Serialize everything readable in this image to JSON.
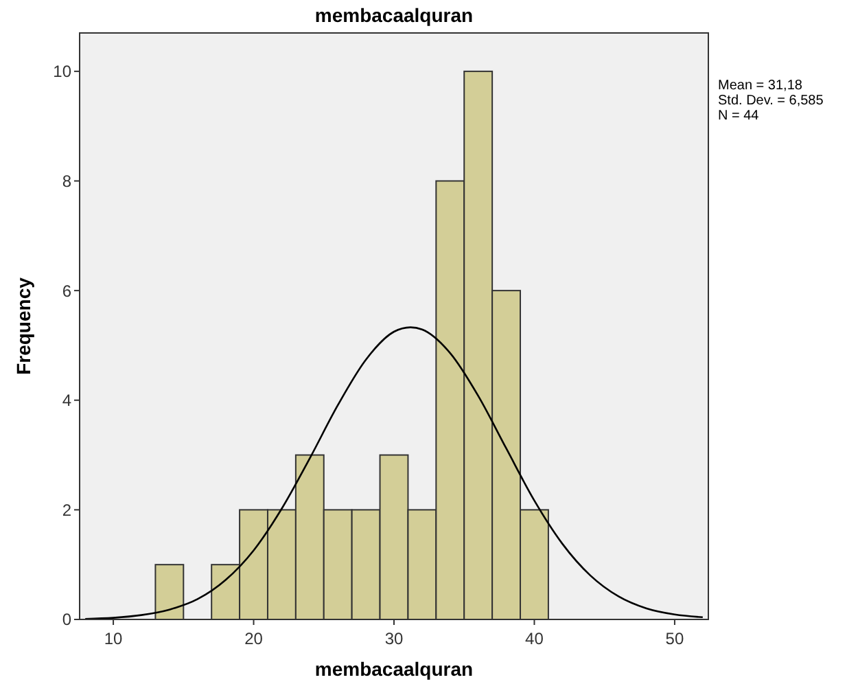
{
  "chart_data": {
    "type": "histogram",
    "title": "membacaalquran",
    "xlabel": "membacaalquran",
    "ylabel": "Frequency",
    "series": [
      {
        "color": "#d3ce97",
        "bins": [
          13,
          15,
          17,
          19,
          21,
          23,
          25,
          27,
          29,
          31,
          33,
          35,
          37,
          39,
          41
        ],
        "values": [
          1,
          0,
          1,
          2,
          2,
          3,
          2,
          2,
          3,
          2,
          8,
          10,
          6,
          2
        ]
      },
      {
        "type": "line",
        "color": "#000000",
        "x": [
          8,
          10,
          12,
          14,
          16,
          18,
          20,
          22,
          24,
          26,
          28,
          30,
          31.18,
          32,
          34,
          36,
          38,
          40,
          42,
          44,
          46,
          48,
          50,
          52
        ],
        "values": [
          0.01,
          0.03,
          0.08,
          0.18,
          0.37,
          0.72,
          1.26,
          2.02,
          2.94,
          3.91,
          4.74,
          5.25,
          5.33,
          5.29,
          4.86,
          4.08,
          3.12,
          2.17,
          1.38,
          0.8,
          0.42,
          0.2,
          0.09,
          0.04
        ]
      }
    ],
    "xlim": [
      7.6,
      52.4
    ],
    "ylim": [
      0,
      10.7
    ],
    "xticks": [
      10,
      20,
      30,
      40,
      50
    ],
    "yticks": [
      0,
      2,
      4,
      6,
      8,
      10
    ],
    "grid": false,
    "annotations": [
      "Mean = 31,18",
      "Std. Dev. = 6,585",
      "N = 44"
    ]
  }
}
